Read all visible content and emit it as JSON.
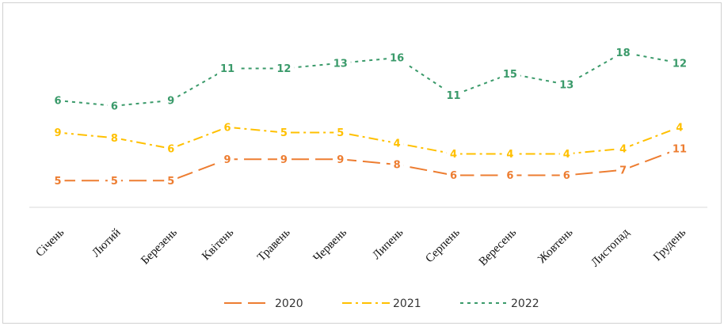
{
  "chart_data": {
    "type": "line",
    "stacked": true,
    "categories": [
      "Січень",
      "Лютий",
      "Березень",
      "Квітень",
      "Травень",
      "Червень",
      "Липень",
      "Серпень",
      "Вересень",
      "Жовтень",
      "Листопад",
      "Грудень"
    ],
    "series": [
      {
        "name": "2020",
        "color": "#ED7D31",
        "values": [
          5,
          5,
          5,
          9,
          9,
          9,
          8,
          6,
          6,
          6,
          7,
          11
        ]
      },
      {
        "name": "2021",
        "color": "#FFC000",
        "values": [
          9,
          8,
          6,
          6,
          5,
          5,
          4,
          4,
          4,
          4,
          4,
          4
        ]
      },
      {
        "name": "2022",
        "color": "#3A9A6A",
        "values": [
          6,
          6,
          9,
          11,
          12,
          13,
          16,
          11,
          15,
          13,
          18,
          12
        ]
      }
    ],
    "legend": "bottom"
  }
}
